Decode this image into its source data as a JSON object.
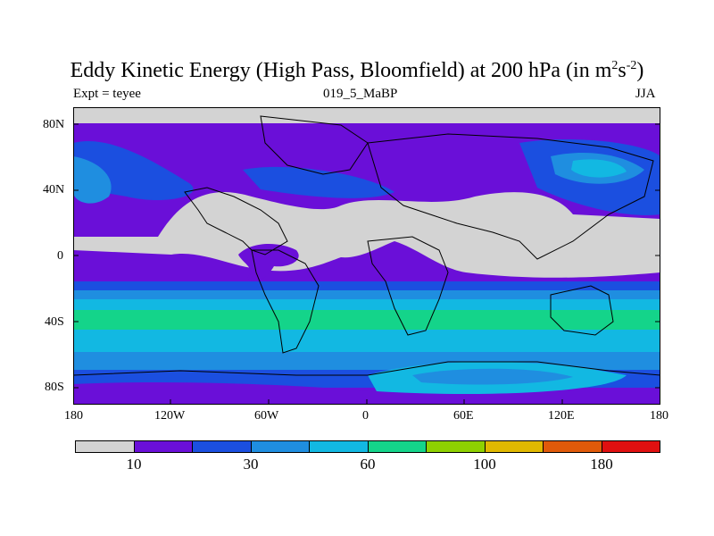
{
  "title": {
    "main": "Eddy Kinetic Energy (High Pass, Bloomfield) at 200 hPa (in m",
    "sup1": "2",
    "mid": "s",
    "sup2": "-2",
    "end": ")"
  },
  "subtitle": {
    "left": "Expt = teyee",
    "center": "019_5_MaBP",
    "right": "JJA"
  },
  "map": {
    "lat_ticks": [
      "80N",
      "40N",
      "0",
      "40S",
      "80S"
    ],
    "lon_ticks": [
      "180",
      "120W",
      "60W",
      "0",
      "60E",
      "120E",
      "180"
    ]
  },
  "colorbar": {
    "colors": [
      "#d3d3d3",
      "#6a0fd8",
      "#1b4fe0",
      "#1f8ee0",
      "#12b8e2",
      "#14d48a",
      "#8ed000",
      "#e0b800",
      "#e05a0a",
      "#e01010"
    ],
    "labels": [
      "10",
      "30",
      "60",
      "100",
      "180"
    ]
  }
}
